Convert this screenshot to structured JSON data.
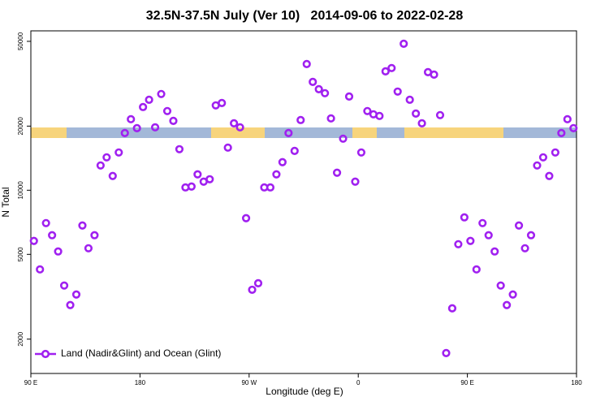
{
  "chart_data": {
    "type": "scatter",
    "title": "32.5N-37.5N July (Ver 10)   2014-09-06 to 2022-02-28",
    "xlabel": "Longitude (deg E)",
    "ylabel": "N Total",
    "x": [
      92.5,
      97.5,
      102.5,
      107.5,
      112.5,
      117.5,
      122.5,
      127.5,
      132.5,
      137.5,
      142.5,
      147.5,
      152.5,
      157.5,
      162.5,
      167.5,
      172.5,
      177.5,
      182.5,
      187.5,
      192.5,
      197.5,
      202.5,
      207.5,
      212.5,
      217.5,
      222.5,
      227.5,
      232.5,
      237.5,
      242.5,
      247.5,
      252.5,
      257.5,
      262.5,
      267.5,
      272.5,
      277.5,
      282.5,
      287.5,
      292.5,
      297.5,
      302.5,
      307.5,
      312.5,
      317.5,
      322.5,
      327.5,
      332.5,
      337.5,
      342.5,
      347.5,
      352.5,
      357.5,
      362.5,
      367.5,
      372.5,
      377.5,
      382.5,
      387.5,
      392.5,
      397.5,
      402.5,
      407.5,
      412.5,
      417.5,
      422.5,
      427.5,
      432.5,
      437.5,
      442.5,
      447.5,
      452.5,
      457.5,
      462.5,
      467.5,
      472.5,
      477.5,
      482.5,
      487.5,
      492.5,
      497.5,
      502.5,
      507.5,
      512.5,
      517.5,
      522.5,
      527.5,
      532.5,
      537.5
    ],
    "series": [
      {
        "name": "Land (Nadir&Glint) and Ocean (Glint)",
        "color": "#a020f0",
        "values": [
          5780,
          4250,
          7010,
          6150,
          5160,
          3570,
          2890,
          3240,
          6830,
          5340,
          6150,
          13070,
          14270,
          11670,
          15040,
          18560,
          21550,
          19560,
          24580,
          26600,
          19740,
          28290,
          23530,
          21170,
          15580,
          10310,
          10410,
          11870,
          10970,
          11260,
          25020,
          25680,
          15850,
          20620,
          19740,
          7390,
          3410,
          3660,
          10310,
          10310,
          11870,
          13540,
          18560,
          15300,
          21360,
          39120,
          32260,
          29800,
          28540,
          21740,
          12080,
          17460,
          27540,
          10970,
          15040,
          23530,
          22720,
          22320,
          36150,
          37460,
          29050,
          48720,
          26600,
          22910,
          20620,
          35840,
          34900,
          22520,
          1720,
          2790,
          5580,
          7460,
          5780,
          4250,
          7010,
          6150,
          5160,
          3570,
          2890,
          3240,
          6830,
          5340,
          6150,
          13070,
          14270,
          11670,
          15040,
          18560,
          21550,
          19560
        ]
      }
    ],
    "xlim": [
      90,
      540
    ],
    "xticks": [
      {
        "value": 90,
        "label": "90 E"
      },
      180,
      {
        "value": 270,
        "label": "90 W"
      },
      {
        "value": 360,
        "label": "0"
      },
      {
        "value": 450,
        "label": "90 E"
      },
      {
        "value": 540,
        "label": "180"
      }
    ],
    "ylim": [
      1380,
      56000
    ],
    "yticks": [
      2000,
      5000,
      10000,
      20000,
      50000
    ],
    "ylog": true,
    "legend": "lower left"
  }
}
